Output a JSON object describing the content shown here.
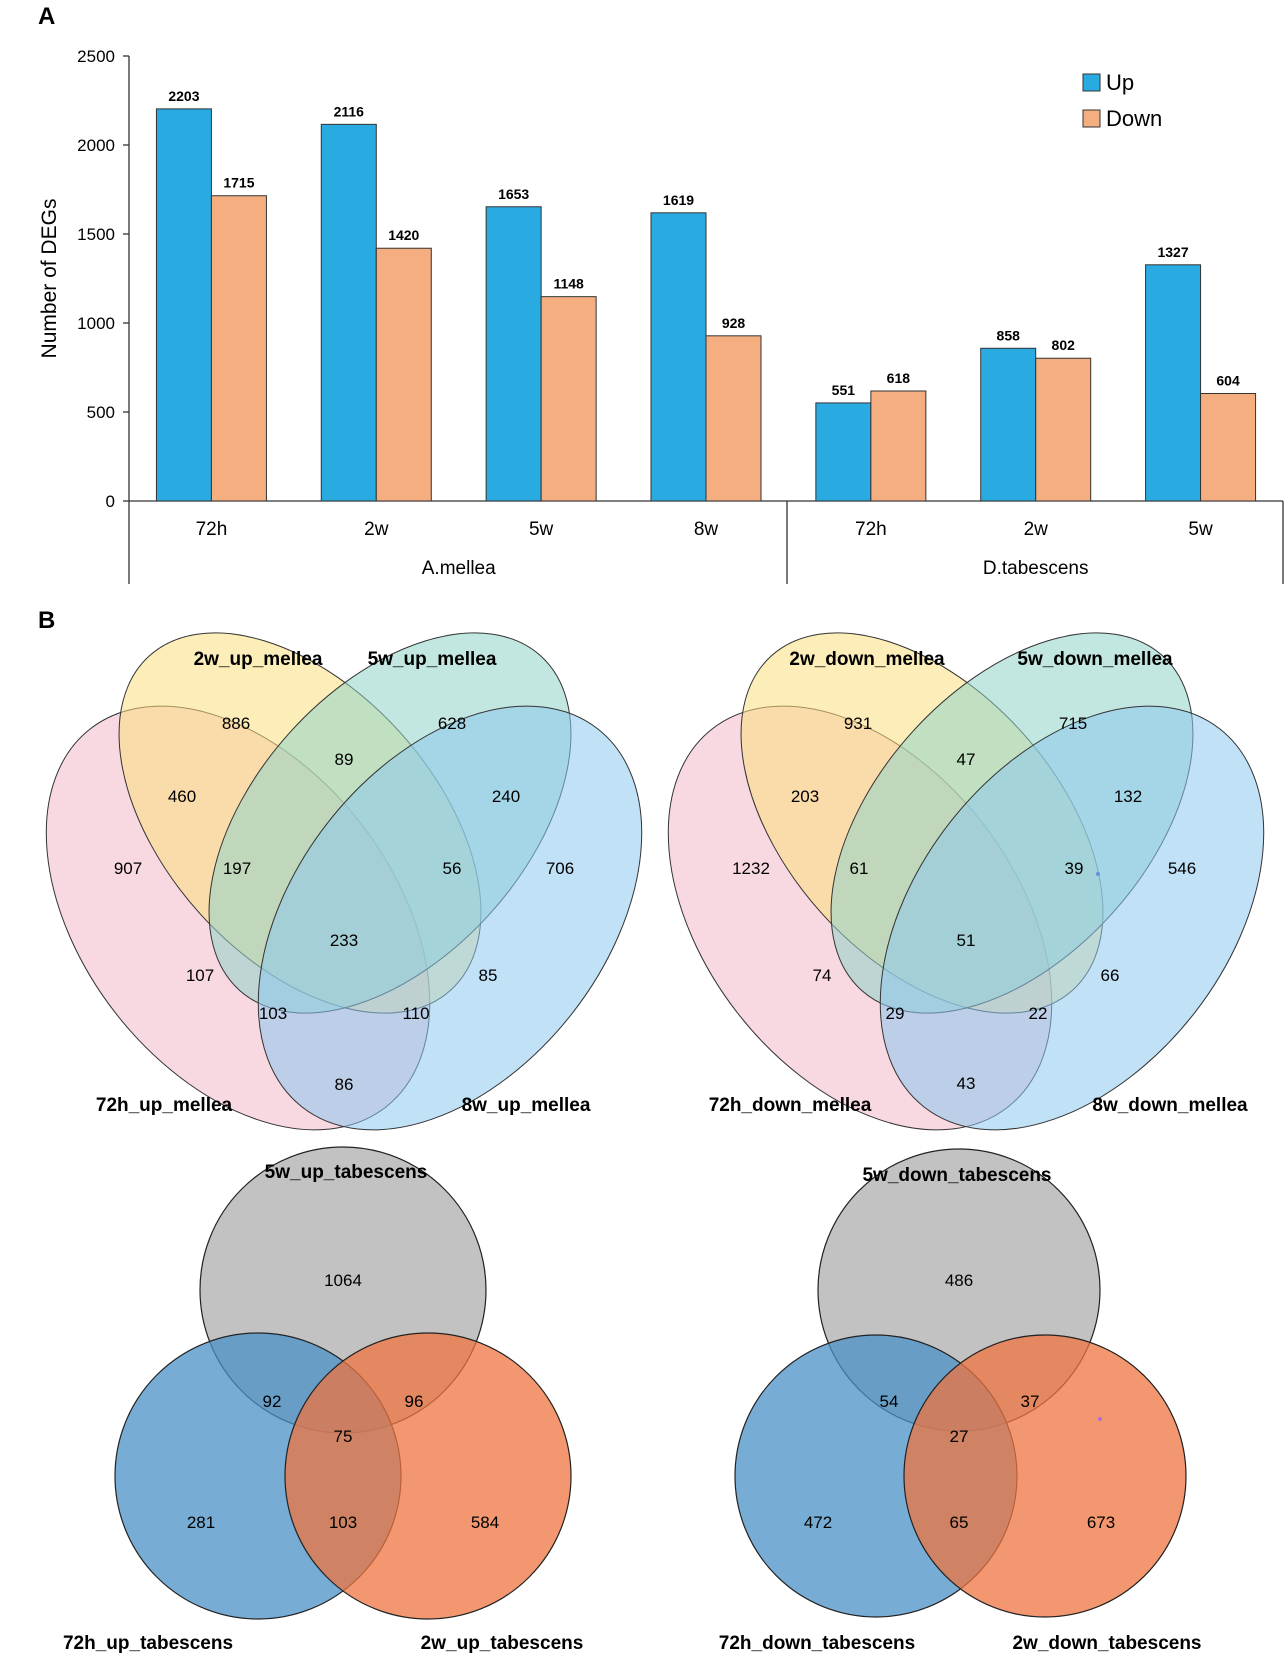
{
  "panels": {
    "a": "A",
    "b": "B"
  },
  "chart_data": [
    {
      "type": "bar",
      "title": "",
      "xlabel": "",
      "ylabel": "Number of DEGs",
      "ylim": [
        0,
        2500
      ],
      "yticks": [
        "0",
        "500",
        "1000",
        "1500",
        "2000",
        "2500"
      ],
      "categories": [
        "72h",
        "2w",
        "5w",
        "8w",
        "72h",
        "2w",
        "5w"
      ],
      "groups": [
        {
          "name": "A.mellea",
          "count": 4
        },
        {
          "name": "D.tabescens",
          "count": 3
        }
      ],
      "series": [
        {
          "name": "Up",
          "color": "#29ABE2",
          "values": [
            2203,
            2116,
            1653,
            1619,
            551,
            858,
            1327
          ]
        },
        {
          "name": "Down",
          "color": "#F5AE80",
          "values": [
            1715,
            1420,
            1148,
            928,
            618,
            802,
            604
          ]
        }
      ],
      "legend": "top-right"
    },
    {
      "type": "venn",
      "sets": [
        "72h_up_mellea",
        "2w_up_mellea",
        "5w_up_mellea",
        "8w_up_mellea"
      ],
      "regions": {
        "72h": 907,
        "2w": 886,
        "5w": 628,
        "8w": 706,
        "72h&2w": 460,
        "2w&5w": 89,
        "5w&8w": 240,
        "72h&8w": 86,
        "72h&2w&5w": 197,
        "2w&5w&8w": 56,
        "72h&5w": 107,
        "2w&8w": 85,
        "72h&5w&8w": 103,
        "72h&2w&8w": 110,
        "all": 233
      }
    },
    {
      "type": "venn",
      "sets": [
        "72h_down_mellea",
        "2w_down_mellea",
        "5w_down_mellea",
        "8w_down_mellea"
      ],
      "regions": {
        "72h": 1232,
        "2w": 931,
        "5w": 715,
        "8w": 546,
        "72h&2w": 203,
        "2w&5w": 47,
        "5w&8w": 132,
        "72h&8w": 43,
        "72h&2w&5w": 61,
        "2w&5w&8w": 39,
        "72h&5w": 74,
        "2w&8w": 66,
        "72h&5w&8w": 29,
        "72h&2w&8w": 22,
        "all": 51
      }
    },
    {
      "type": "venn",
      "sets": [
        "5w_up_tabescens",
        "72h_up_tabescens",
        "2w_up_tabescens"
      ],
      "regions": {
        "5w": 1064,
        "5w&72h": 92,
        "5w&2w": 96,
        "all": 75,
        "72h": 281,
        "72h&2w": 103,
        "2w": 584
      }
    },
    {
      "type": "venn",
      "sets": [
        "5w_down_tabescens",
        "72h_down_tabescens",
        "2w_down_tabescens"
      ],
      "regions": {
        "5w": 486,
        "5w&72h": 54,
        "5w&2w": 37,
        "all": 27,
        "72h": 472,
        "72h&2w": 65,
        "2w": 673
      }
    }
  ]
}
